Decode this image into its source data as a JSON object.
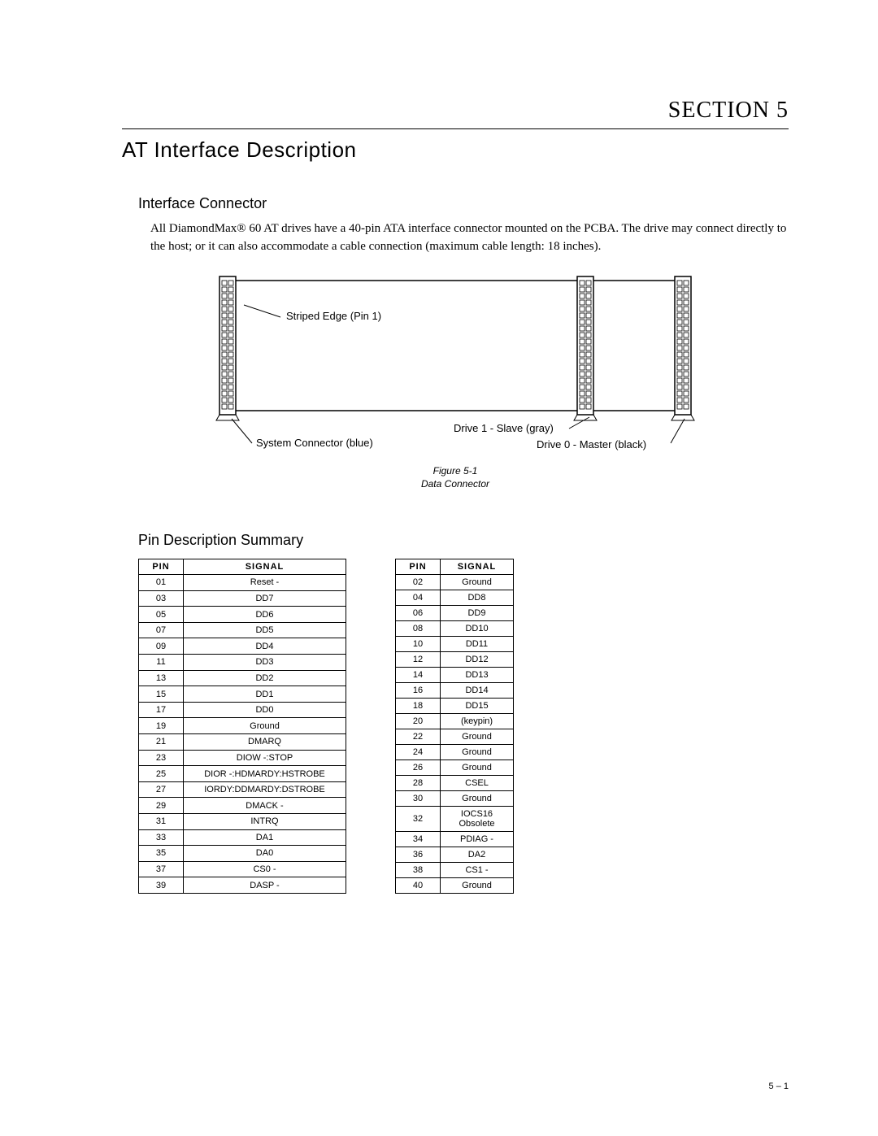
{
  "section_header": "SECTION 5",
  "main_title": "AT Interface Description",
  "sub1_title": "Interface Connector",
  "paragraph": "All DiamondMax® 60 AT drives have a 40-pin ATA interface connector mounted on the PCBA. The drive may connect directly to the host; or it can also accommodate a cable connection (maximum cable length: 18 inches).",
  "figure": {
    "caption_line1": "Figure 5-1",
    "caption_line2": "Data Connector",
    "labels": {
      "striped_edge": "Striped Edge (Pin 1)",
      "system_connector": "System Connector (blue)",
      "drive1": "Drive 1 - Slave (gray)",
      "drive0": "Drive 0 - Master (black)"
    },
    "colors": {
      "stroke": "#000000",
      "fill": "#ffffff"
    }
  },
  "sub2_title": "Pin Description Summary",
  "table_headers": {
    "pin": "PIN",
    "signal": "SIGNAL"
  },
  "table_left": [
    {
      "pin": "01",
      "signal": "Reset -"
    },
    {
      "pin": "03",
      "signal": "DD7"
    },
    {
      "pin": "05",
      "signal": "DD6"
    },
    {
      "pin": "07",
      "signal": "DD5"
    },
    {
      "pin": "09",
      "signal": "DD4"
    },
    {
      "pin": "11",
      "signal": "DD3"
    },
    {
      "pin": "13",
      "signal": "DD2"
    },
    {
      "pin": "15",
      "signal": "DD1"
    },
    {
      "pin": "17",
      "signal": "DD0"
    },
    {
      "pin": "19",
      "signal": "Ground"
    },
    {
      "pin": "21",
      "signal": "DMARQ"
    },
    {
      "pin": "23",
      "signal": "DIOW -:STOP"
    },
    {
      "pin": "25",
      "signal": "DIOR -:HDMARDY:HSTROBE"
    },
    {
      "pin": "27",
      "signal": "IORDY:DDMARDY:DSTROBE"
    },
    {
      "pin": "29",
      "signal": "DMACK -"
    },
    {
      "pin": "31",
      "signal": "INTRQ"
    },
    {
      "pin": "33",
      "signal": "DA1"
    },
    {
      "pin": "35",
      "signal": "DA0"
    },
    {
      "pin": "37",
      "signal": "CS0 -"
    },
    {
      "pin": "39",
      "signal": "DASP -"
    }
  ],
  "table_right": [
    {
      "pin": "02",
      "signal": "Ground"
    },
    {
      "pin": "04",
      "signal": "DD8"
    },
    {
      "pin": "06",
      "signal": "DD9"
    },
    {
      "pin": "08",
      "signal": "DD10"
    },
    {
      "pin": "10",
      "signal": "DD11"
    },
    {
      "pin": "12",
      "signal": "DD12"
    },
    {
      "pin": "14",
      "signal": "DD13"
    },
    {
      "pin": "16",
      "signal": "DD14"
    },
    {
      "pin": "18",
      "signal": "DD15"
    },
    {
      "pin": "20",
      "signal": "(keypin)"
    },
    {
      "pin": "22",
      "signal": "Ground"
    },
    {
      "pin": "24",
      "signal": "Ground"
    },
    {
      "pin": "26",
      "signal": "Ground"
    },
    {
      "pin": "28",
      "signal": "CSEL"
    },
    {
      "pin": "30",
      "signal": "Ground"
    },
    {
      "pin": "32",
      "signal": "IOCS16 Obsolete"
    },
    {
      "pin": "34",
      "signal": "PDIAG -"
    },
    {
      "pin": "36",
      "signal": "DA2"
    },
    {
      "pin": "38",
      "signal": "CS1 -"
    },
    {
      "pin": "40",
      "signal": "Ground"
    }
  ],
  "page_number": "5 – 1"
}
